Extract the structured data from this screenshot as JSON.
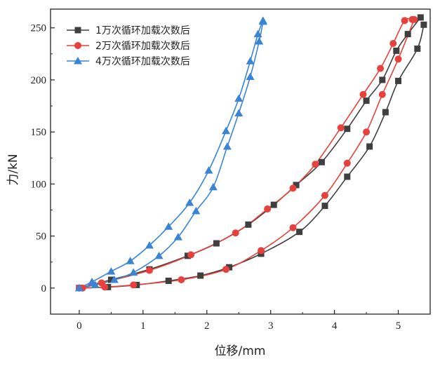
{
  "chart_data": {
    "type": "line",
    "xlabel": "位移/mm",
    "ylabel": "力/kN",
    "xlim": [
      -0.45,
      5.5
    ],
    "ylim": [
      -25,
      268
    ],
    "xticks": [
      0,
      1,
      2,
      3,
      4,
      5
    ],
    "yticks": [
      0,
      50,
      100,
      150,
      200,
      250
    ],
    "grid": false,
    "legend_position": "top-left",
    "series": [
      {
        "name": "1万次循环加载次数后",
        "color": "#3f3f3f",
        "marker": "square",
        "loading": [
          [
            0,
            0
          ],
          [
            0.5,
            8
          ],
          [
            1.1,
            18
          ],
          [
            1.7,
            31
          ],
          [
            2.15,
            43
          ],
          [
            2.65,
            61
          ],
          [
            3.05,
            80
          ],
          [
            3.4,
            99
          ],
          [
            3.8,
            121
          ],
          [
            4.2,
            153
          ],
          [
            4.5,
            180
          ],
          [
            4.75,
            200
          ],
          [
            4.97,
            228
          ],
          [
            5.15,
            244
          ],
          [
            5.35,
            260
          ]
        ],
        "unloading": [
          [
            5.4,
            253
          ],
          [
            5.3,
            230
          ],
          [
            5.0,
            199
          ],
          [
            4.8,
            169
          ],
          [
            4.55,
            136
          ],
          [
            4.2,
            107
          ],
          [
            3.85,
            79
          ],
          [
            3.45,
            54
          ],
          [
            2.85,
            33
          ],
          [
            2.35,
            20
          ],
          [
            1.9,
            12
          ],
          [
            1.4,
            7
          ],
          [
            0.9,
            3
          ],
          [
            0.45,
            1
          ],
          [
            0,
            0
          ]
        ]
      },
      {
        "name": "2万次循环加载次数后",
        "color": "#e8403a",
        "marker": "circle",
        "loading": [
          [
            0,
            0
          ],
          [
            0.35,
            5
          ],
          [
            1.1,
            17
          ],
          [
            1.75,
            32
          ],
          [
            2.45,
            53
          ],
          [
            2.95,
            76
          ],
          [
            3.35,
            96
          ],
          [
            3.7,
            119
          ],
          [
            4.1,
            154
          ],
          [
            4.45,
            186
          ],
          [
            4.72,
            211
          ],
          [
            4.92,
            235
          ],
          [
            5.1,
            257
          ],
          [
            5.22,
            258
          ]
        ],
        "unloading": [
          [
            5.25,
            258
          ],
          [
            5.0,
            220
          ],
          [
            4.75,
            186
          ],
          [
            4.5,
            150
          ],
          [
            4.2,
            120
          ],
          [
            3.85,
            89
          ],
          [
            3.35,
            58
          ],
          [
            2.85,
            36
          ],
          [
            2.3,
            18
          ],
          [
            1.6,
            8
          ],
          [
            0.85,
            3
          ],
          [
            0.4,
            1
          ],
          [
            0.05,
            0
          ]
        ]
      },
      {
        "name": "4万次循环加载次数后",
        "color": "#3a84d6",
        "marker": "triangle",
        "loading": [
          [
            0,
            0
          ],
          [
            0.2,
            6
          ],
          [
            0.5,
            16
          ],
          [
            0.8,
            26
          ],
          [
            1.1,
            41
          ],
          [
            1.4,
            59
          ],
          [
            1.73,
            82
          ],
          [
            2.03,
            113
          ],
          [
            2.3,
            151
          ],
          [
            2.5,
            182
          ],
          [
            2.68,
            218
          ],
          [
            2.8,
            244
          ],
          [
            2.88,
            257
          ]
        ],
        "unloading": [
          [
            2.88,
            256
          ],
          [
            2.82,
            237
          ],
          [
            2.68,
            203
          ],
          [
            2.5,
            168
          ],
          [
            2.32,
            136
          ],
          [
            2.1,
            97
          ],
          [
            1.83,
            74
          ],
          [
            1.55,
            49
          ],
          [
            1.25,
            31
          ],
          [
            0.85,
            15
          ],
          [
            0.55,
            8
          ],
          [
            0.25,
            3
          ],
          [
            0,
            0
          ]
        ]
      }
    ]
  }
}
